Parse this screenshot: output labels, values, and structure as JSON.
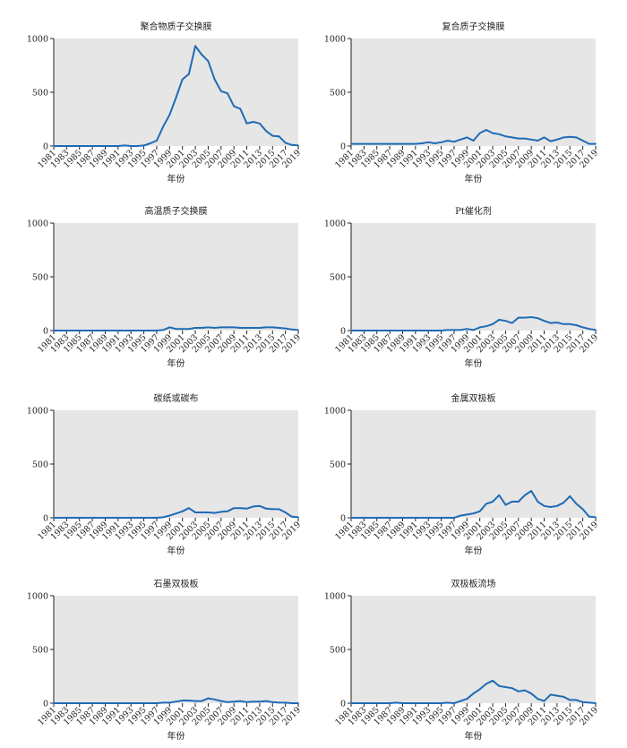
{
  "chart_data": [
    {
      "type": "line",
      "title": "聚合物质子交换膜",
      "xlabel": "年份",
      "ylabel": "",
      "xlim": [
        1981,
        2019
      ],
      "ylim": [
        0,
        1000
      ],
      "yticks": [
        "0",
        "500",
        "1000"
      ],
      "xticks": [
        "1981",
        "1983",
        "1985",
        "1987",
        "1989",
        "1991",
        "1993",
        "1995",
        "1997",
        "1999",
        "2001",
        "2003",
        "2005",
        "2007",
        "2009",
        "2011",
        "2013",
        "2015",
        "2017",
        "2019"
      ],
      "grid": false,
      "background": "#e6e6e6",
      "line_color": "#1f6bb5",
      "x": [
        1981,
        1982,
        1983,
        1984,
        1985,
        1986,
        1987,
        1988,
        1989,
        1990,
        1991,
        1992,
        1993,
        1994,
        1995,
        1996,
        1997,
        1998,
        1999,
        2000,
        2001,
        2002,
        2003,
        2004,
        2005,
        2006,
        2007,
        2008,
        2009,
        2010,
        2011,
        2012,
        2013,
        2014,
        2015,
        2016,
        2017,
        2018,
        2019
      ],
      "series": [
        {
          "values": [
            0,
            0,
            0,
            0,
            0,
            0,
            0,
            0,
            0,
            0,
            0,
            5,
            0,
            0,
            5,
            25,
            50,
            180,
            290,
            450,
            620,
            670,
            930,
            850,
            790,
            620,
            510,
            490,
            370,
            345,
            210,
            225,
            210,
            140,
            95,
            90,
            30,
            10,
            5
          ]
        }
      ]
    },
    {
      "type": "line",
      "title": "复合质子交换膜",
      "xlabel": "年份",
      "ylabel": "",
      "xlim": [
        1981,
        2019
      ],
      "ylim": [
        0,
        1000
      ],
      "yticks": [
        "0",
        "500",
        "1000"
      ],
      "xticks": [
        "1981",
        "1983",
        "1985",
        "1987",
        "1989",
        "1991",
        "1993",
        "1995",
        "1997",
        "1999",
        "2001",
        "2003",
        "2005",
        "2007",
        "2009",
        "2011",
        "2013",
        "2015",
        "2017",
        "2019"
      ],
      "grid": false,
      "background": "#e6e6e6",
      "line_color": "#1f6bb5",
      "x": [
        1981,
        1982,
        1983,
        1984,
        1985,
        1986,
        1987,
        1988,
        1989,
        1990,
        1991,
        1992,
        1993,
        1994,
        1995,
        1996,
        1997,
        1998,
        1999,
        2000,
        2001,
        2002,
        2003,
        2004,
        2005,
        2006,
        2007,
        2008,
        2009,
        2010,
        2011,
        2012,
        2013,
        2014,
        2015,
        2016,
        2017,
        2018,
        2019
      ],
      "series": [
        {
          "values": [
            20,
            20,
            20,
            20,
            20,
            20,
            20,
            20,
            20,
            20,
            20,
            25,
            35,
            25,
            35,
            50,
            40,
            60,
            80,
            50,
            120,
            150,
            120,
            110,
            90,
            80,
            70,
            70,
            60,
            50,
            80,
            45,
            60,
            80,
            85,
            80,
            50,
            20,
            20
          ]
        }
      ]
    },
    {
      "type": "line",
      "title": "高温质子交换膜",
      "xlabel": "年份",
      "ylabel": "",
      "xlim": [
        1981,
        2019
      ],
      "ylim": [
        0,
        1000
      ],
      "yticks": [
        "0",
        "500",
        "1000"
      ],
      "xticks": [
        "1981",
        "1983",
        "1985",
        "1987",
        "1989",
        "1991",
        "1993",
        "1995",
        "1997",
        "1999",
        "2001",
        "2003",
        "2005",
        "2007",
        "2009",
        "2011",
        "2013",
        "2015",
        "2017",
        "2019"
      ],
      "grid": false,
      "background": "#e6e6e6",
      "line_color": "#1f6bb5",
      "x": [
        1981,
        1982,
        1983,
        1984,
        1985,
        1986,
        1987,
        1988,
        1989,
        1990,
        1991,
        1992,
        1993,
        1994,
        1995,
        1996,
        1997,
        1998,
        1999,
        2000,
        2001,
        2002,
        2003,
        2004,
        2005,
        2006,
        2007,
        2008,
        2009,
        2010,
        2011,
        2012,
        2013,
        2014,
        2015,
        2016,
        2017,
        2018,
        2019
      ],
      "series": [
        {
          "values": [
            0,
            0,
            0,
            0,
            0,
            0,
            0,
            0,
            0,
            0,
            0,
            0,
            0,
            0,
            0,
            0,
            0,
            5,
            30,
            15,
            15,
            15,
            25,
            25,
            30,
            25,
            30,
            30,
            30,
            25,
            25,
            25,
            25,
            30,
            30,
            25,
            20,
            10,
            5
          ]
        }
      ]
    },
    {
      "type": "line",
      "title": "Pt催化剂",
      "xlabel": "年份",
      "ylabel": "",
      "xlim": [
        1981,
        2019
      ],
      "ylim": [
        0,
        1000
      ],
      "yticks": [
        "0",
        "500",
        "1000"
      ],
      "xticks": [
        "1981",
        "1983",
        "1985",
        "1987",
        "1989",
        "1991",
        "1993",
        "1995",
        "1997",
        "1999",
        "2001",
        "2003",
        "2005",
        "2007",
        "2009",
        "2011",
        "2013",
        "2015",
        "2017",
        "2019"
      ],
      "grid": false,
      "background": "#e6e6e6",
      "line_color": "#1f6bb5",
      "x": [
        1981,
        1982,
        1983,
        1984,
        1985,
        1986,
        1987,
        1988,
        1989,
        1990,
        1991,
        1992,
        1993,
        1994,
        1995,
        1996,
        1997,
        1998,
        1999,
        2000,
        2001,
        2002,
        2003,
        2004,
        2005,
        2006,
        2007,
        2008,
        2009,
        2010,
        2011,
        2012,
        2013,
        2014,
        2015,
        2016,
        2017,
        2018,
        2019
      ],
      "series": [
        {
          "values": [
            0,
            0,
            0,
            0,
            0,
            0,
            0,
            0,
            0,
            0,
            0,
            0,
            0,
            0,
            0,
            5,
            5,
            5,
            15,
            5,
            30,
            40,
            60,
            100,
            90,
            70,
            120,
            120,
            125,
            115,
            90,
            70,
            75,
            60,
            60,
            50,
            30,
            15,
            5
          ]
        }
      ]
    },
    {
      "type": "line",
      "title": "碳纸或碳布",
      "xlabel": "年份",
      "ylabel": "",
      "xlim": [
        1981,
        2019
      ],
      "ylim": [
        0,
        1000
      ],
      "yticks": [
        "0",
        "500",
        "1000"
      ],
      "xticks": [
        "1981",
        "1983",
        "1985",
        "1987",
        "1989",
        "1991",
        "1993",
        "1995",
        "1997",
        "1999",
        "2001",
        "2003",
        "2005",
        "2007",
        "2009",
        "2011",
        "2013",
        "2015",
        "2017",
        "2019"
      ],
      "grid": false,
      "background": "#e6e6e6",
      "line_color": "#1f6bb5",
      "x": [
        1981,
        1982,
        1983,
        1984,
        1985,
        1986,
        1987,
        1988,
        1989,
        1990,
        1991,
        1992,
        1993,
        1994,
        1995,
        1996,
        1997,
        1998,
        1999,
        2000,
        2001,
        2002,
        2003,
        2004,
        2005,
        2006,
        2007,
        2008,
        2009,
        2010,
        2011,
        2012,
        2013,
        2014,
        2015,
        2016,
        2017,
        2018,
        2019
      ],
      "series": [
        {
          "values": [
            0,
            0,
            0,
            0,
            0,
            0,
            0,
            0,
            0,
            0,
            0,
            0,
            0,
            0,
            0,
            0,
            0,
            5,
            20,
            40,
            60,
            90,
            50,
            50,
            50,
            45,
            55,
            60,
            90,
            90,
            85,
            105,
            110,
            85,
            80,
            80,
            50,
            10,
            5
          ]
        }
      ]
    },
    {
      "type": "line",
      "title": "金属双极板",
      "xlabel": "年份",
      "ylabel": "",
      "xlim": [
        1981,
        2019
      ],
      "ylim": [
        0,
        1000
      ],
      "yticks": [
        "0",
        "500",
        "1000"
      ],
      "xticks": [
        "1981",
        "1983",
        "1985",
        "1987",
        "1989",
        "1991",
        "1993",
        "1995",
        "1997",
        "1999",
        "2001",
        "2003",
        "2005",
        "2007",
        "2009",
        "2011",
        "2013",
        "2015",
        "2017",
        "2019"
      ],
      "grid": false,
      "background": "#e6e6e6",
      "line_color": "#1f6bb5",
      "x": [
        1981,
        1982,
        1983,
        1984,
        1985,
        1986,
        1987,
        1988,
        1989,
        1990,
        1991,
        1992,
        1993,
        1994,
        1995,
        1996,
        1997,
        1998,
        1999,
        2000,
        2001,
        2002,
        2003,
        2004,
        2005,
        2006,
        2007,
        2008,
        2009,
        2010,
        2011,
        2012,
        2013,
        2014,
        2015,
        2016,
        2017,
        2018,
        2019
      ],
      "series": [
        {
          "values": [
            0,
            0,
            0,
            0,
            0,
            0,
            0,
            0,
            0,
            0,
            0,
            0,
            0,
            0,
            0,
            0,
            0,
            20,
            30,
            40,
            60,
            130,
            150,
            210,
            120,
            150,
            150,
            210,
            250,
            150,
            110,
            100,
            110,
            140,
            200,
            130,
            80,
            10,
            5
          ]
        }
      ]
    },
    {
      "type": "line",
      "title": "石墨双极板",
      "xlabel": "年份",
      "ylabel": "",
      "xlim": [
        1981,
        2019
      ],
      "ylim": [
        0,
        1000
      ],
      "yticks": [
        "0",
        "500",
        "1000"
      ],
      "xticks": [
        "1981",
        "1983",
        "1985",
        "1987",
        "1989",
        "1991",
        "1993",
        "1995",
        "1997",
        "1999",
        "2001",
        "2003",
        "2005",
        "2007",
        "2009",
        "2011",
        "2013",
        "2015",
        "2017",
        "2019"
      ],
      "grid": false,
      "background": "#e6e6e6",
      "line_color": "#1f6bb5",
      "x": [
        1981,
        1982,
        1983,
        1984,
        1985,
        1986,
        1987,
        1988,
        1989,
        1990,
        1991,
        1992,
        1993,
        1994,
        1995,
        1996,
        1997,
        1998,
        1999,
        2000,
        2001,
        2002,
        2003,
        2004,
        2005,
        2006,
        2007,
        2008,
        2009,
        2010,
        2011,
        2012,
        2013,
        2014,
        2015,
        2016,
        2017,
        2018,
        2019
      ],
      "series": [
        {
          "values": [
            0,
            0,
            0,
            0,
            0,
            0,
            0,
            0,
            0,
            0,
            0,
            0,
            0,
            0,
            0,
            0,
            0,
            5,
            5,
            15,
            25,
            25,
            20,
            20,
            45,
            35,
            20,
            10,
            15,
            20,
            10,
            15,
            15,
            20,
            10,
            5,
            5,
            0,
            0
          ]
        }
      ]
    },
    {
      "type": "line",
      "title": "双极板流场",
      "xlabel": "年份",
      "ylabel": "",
      "xlim": [
        1981,
        2019
      ],
      "ylim": [
        0,
        1000
      ],
      "yticks": [
        "0",
        "500",
        "1000"
      ],
      "xticks": [
        "1981",
        "1983",
        "1985",
        "1987",
        "1989",
        "1991",
        "1993",
        "1995",
        "1997",
        "1999",
        "2001",
        "2003",
        "2005",
        "2007",
        "2009",
        "2011",
        "2013",
        "2015",
        "2017",
        "2019"
      ],
      "grid": false,
      "background": "#e6e6e6",
      "line_color": "#1f6bb5",
      "x": [
        1981,
        1982,
        1983,
        1984,
        1985,
        1986,
        1987,
        1988,
        1989,
        1990,
        1991,
        1992,
        1993,
        1994,
        1995,
        1996,
        1997,
        1998,
        1999,
        2000,
        2001,
        2002,
        2003,
        2004,
        2005,
        2006,
        2007,
        2008,
        2009,
        2010,
        2011,
        2012,
        2013,
        2014,
        2015,
        2016,
        2017,
        2018,
        2019
      ],
      "series": [
        {
          "values": [
            0,
            0,
            0,
            0,
            0,
            0,
            0,
            5,
            0,
            0,
            0,
            0,
            0,
            0,
            0,
            5,
            0,
            20,
            40,
            90,
            130,
            180,
            210,
            160,
            150,
            140,
            110,
            120,
            90,
            40,
            20,
            80,
            70,
            60,
            30,
            30,
            10,
            5,
            0
          ]
        }
      ]
    }
  ]
}
